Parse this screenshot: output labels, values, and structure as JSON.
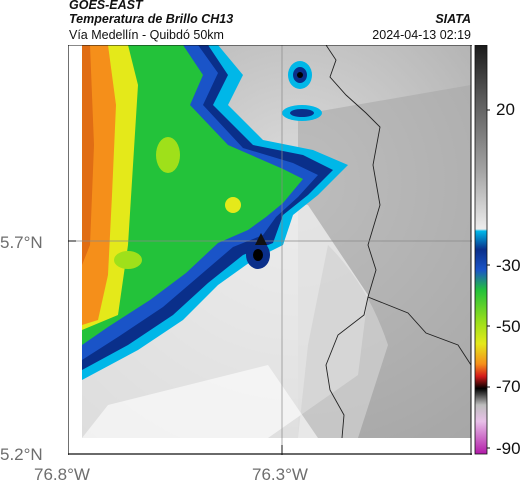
{
  "header": {
    "satellite": "GOES-EAST",
    "product": "Temperatura de Brillo CH13",
    "region": "Vía Medellín - Quibdó 50km",
    "org": "SIATA",
    "datetime": "2024-04-13 02:19"
  },
  "map": {
    "lat_labels": [
      "5.7°N",
      "5.2°N"
    ],
    "lon_labels": [
      "76.8°W",
      "76.3°W"
    ]
  },
  "colorbar": {
    "ticks": [
      "20",
      "-30",
      "-50",
      "-70",
      "-90"
    ],
    "colors": {
      "warm_top": "#ffffff",
      "gray_mid": "#9a9a9a",
      "gray_dark": "#1a1a1a",
      "cyan": "#00b7e8",
      "blue": "#0a2f8a",
      "green": "#23c23a",
      "yellow": "#e4e91a",
      "orange": "#f58f1a",
      "red": "#d41a1a",
      "black": "#000000",
      "magenta": "#b21aa8"
    }
  }
}
